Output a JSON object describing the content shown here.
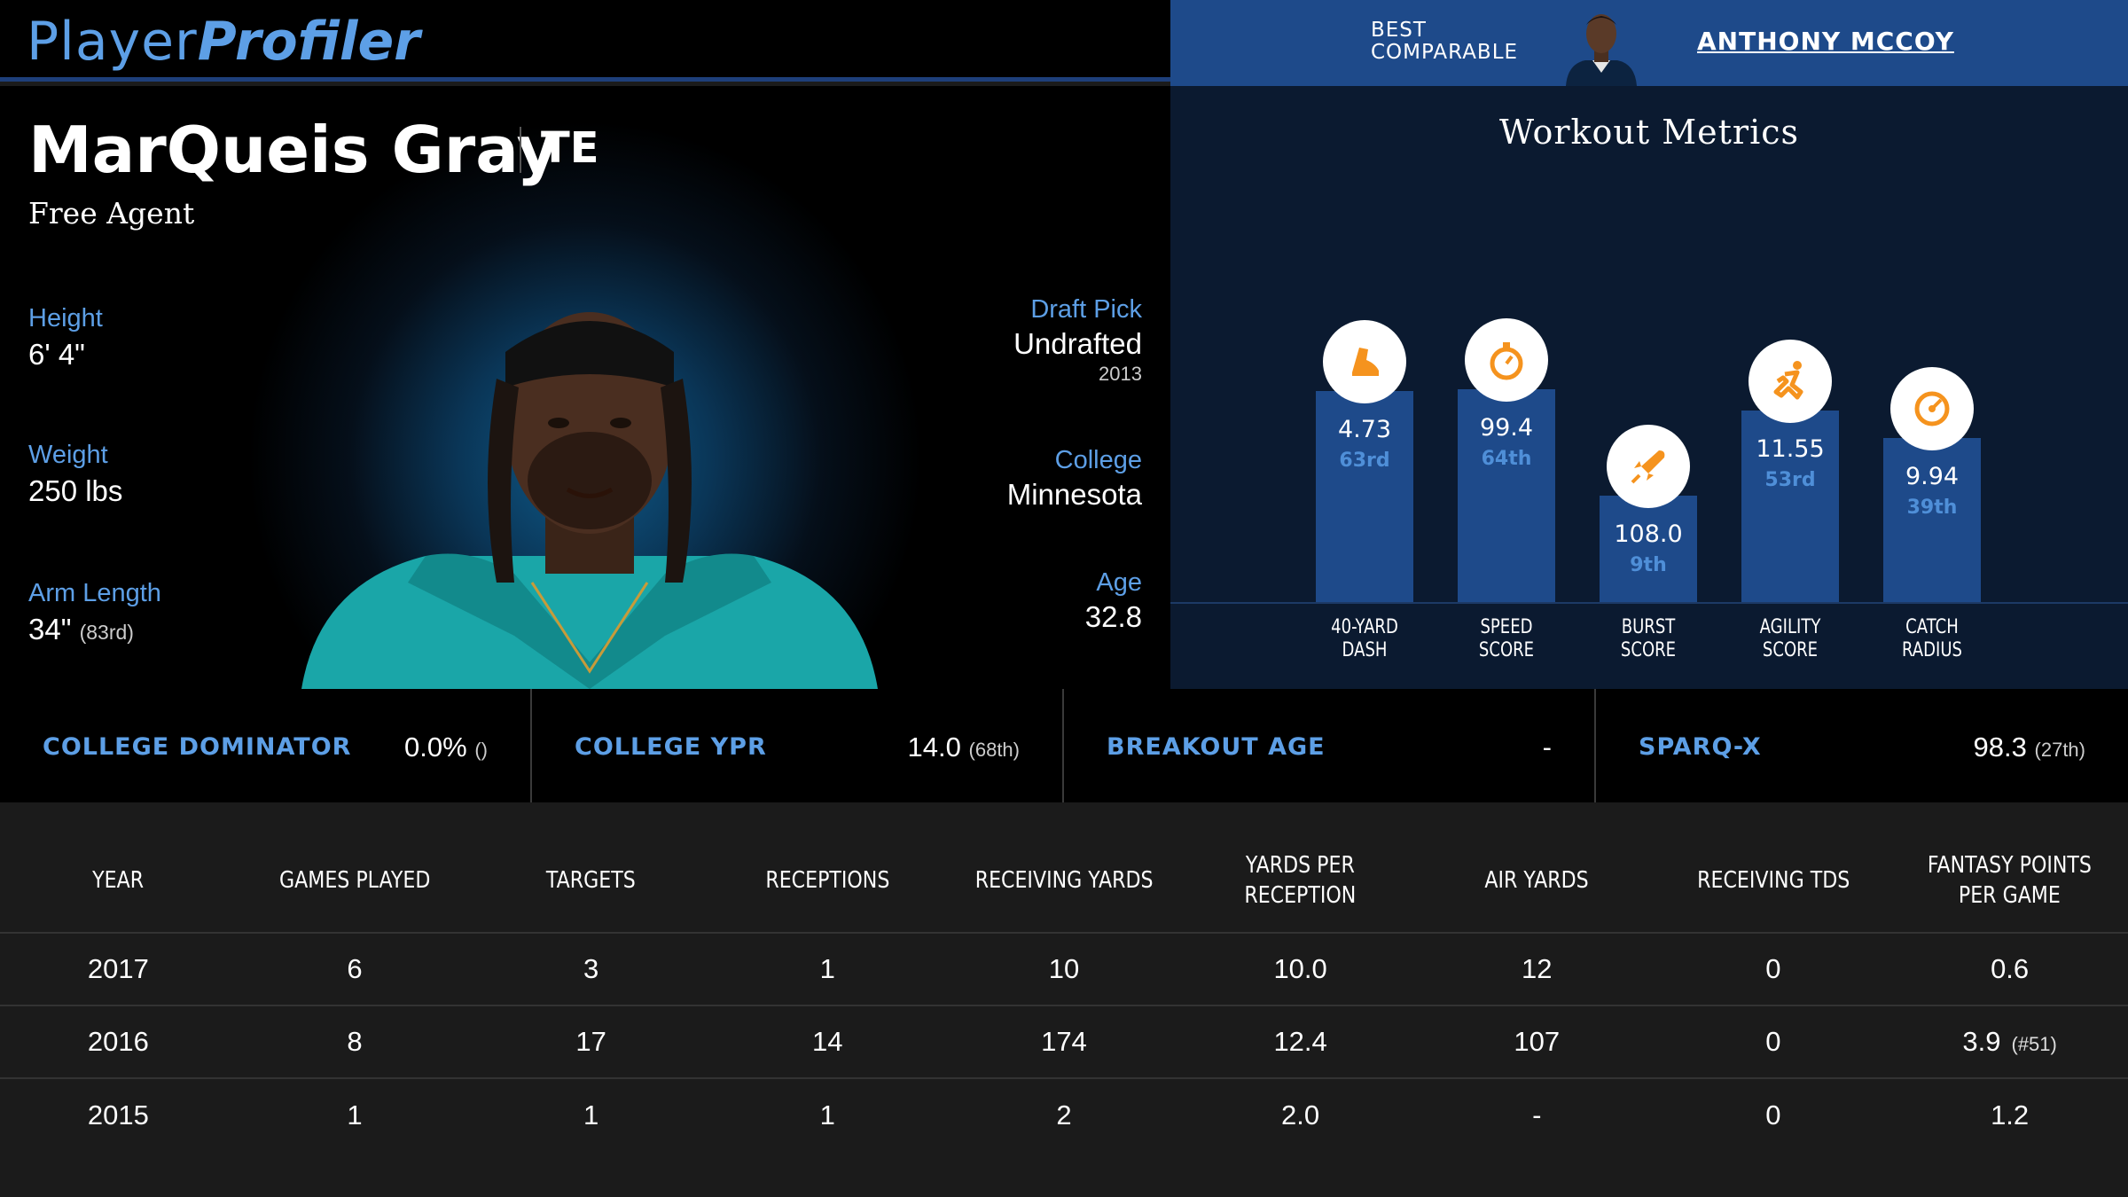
{
  "header": {
    "logo_part1": "Player",
    "logo_part2": "Profiler",
    "comparable_label_line1": "BEST",
    "comparable_label_line2": "COMPARABLE",
    "comparable_name": "ANTHONY MCCOY"
  },
  "player": {
    "name": "MarQueis Gray",
    "position": "TE",
    "team": "Free Agent",
    "height_label": "Height",
    "height": "6' 4\"",
    "weight_label": "Weight",
    "weight": "250 lbs",
    "arm_label": "Arm Length",
    "arm": "34\"",
    "arm_rank": "(83rd)",
    "draft_label": "Draft Pick",
    "draft": "Undrafted",
    "draft_year": "2013",
    "college_label": "College",
    "college": "Minnesota",
    "age_label": "Age",
    "age": "32.8"
  },
  "workout": {
    "title": "Workout Metrics",
    "metrics": [
      {
        "label1": "40-YARD",
        "label2": "DASH",
        "value": "4.73",
        "rank": "63rd",
        "percentile": 63,
        "icon": "shoe-icon"
      },
      {
        "label1": "SPEED",
        "label2": "SCORE",
        "value": "99.4",
        "rank": "64th",
        "percentile": 64,
        "icon": "stopwatch-icon"
      },
      {
        "label1": "BURST",
        "label2": "SCORE",
        "value": "108.0",
        "rank": "9th",
        "percentile": 9,
        "icon": "rocket-icon"
      },
      {
        "label1": "AGILITY",
        "label2": "SCORE",
        "value": "11.55",
        "rank": "53rd",
        "percentile": 53,
        "icon": "runner-icon"
      },
      {
        "label1": "CATCH",
        "label2": "RADIUS",
        "value": "9.94",
        "rank": "39th",
        "percentile": 39,
        "icon": "target-icon"
      }
    ]
  },
  "stats_strip": [
    {
      "label": "COLLEGE DOMINATOR",
      "value": "0.0%",
      "sub": "()"
    },
    {
      "label": "COLLEGE YPR",
      "value": "14.0",
      "sub": "(68th)"
    },
    {
      "label": "BREAKOUT AGE",
      "value": "-",
      "sub": ""
    },
    {
      "label": "SPARQ-X",
      "value": "98.3",
      "sub": "(27th)"
    }
  ],
  "table": {
    "headers": [
      "YEAR",
      "GAMES PLAYED",
      "TARGETS",
      "RECEPTIONS",
      "RECEIVING YARDS",
      "YARDS PER RECEPTION",
      "AIR YARDS",
      "RECEIVING TDS",
      "FANTASY POINTS PER GAME"
    ],
    "rows": [
      {
        "cells": [
          "2017",
          "6",
          "3",
          "1",
          "10",
          "10.0",
          "12",
          "0",
          "0.6"
        ],
        "rank": ""
      },
      {
        "cells": [
          "2016",
          "8",
          "17",
          "14",
          "174",
          "12.4",
          "107",
          "0",
          "3.9"
        ],
        "rank": "(#51)"
      },
      {
        "cells": [
          "2015",
          "1",
          "1",
          "1",
          "2",
          "2.0",
          "-",
          "0",
          "1.2"
        ],
        "rank": ""
      }
    ]
  },
  "colors": {
    "accent": "#5d9fe6",
    "bar": "#1e4a8a",
    "icon": "#f5931e",
    "rank": "#4f8fd8"
  }
}
